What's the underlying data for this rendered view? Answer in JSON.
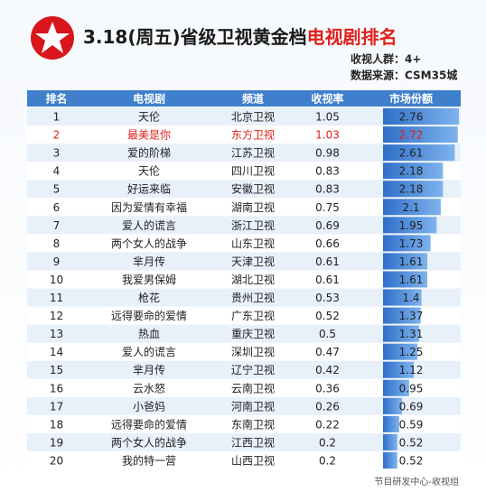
{
  "header": {
    "title_parts": [
      "3.18(周五)省级卫视黄金档",
      "电视剧排名"
    ],
    "title_colors": [
      "#1a1a1a",
      "#e0201c"
    ],
    "info": [
      "收视人群：4+",
      "数据来源：CSM35城"
    ]
  },
  "table": {
    "columns": [
      "排名",
      "电视剧",
      "频道",
      "收视率",
      "市场份额"
    ],
    "rows": [
      [
        1,
        "天伦",
        "北京卫视",
        1.05,
        2.76
      ],
      [
        2,
        "最美是你",
        "东方卫视",
        1.03,
        2.72
      ],
      [
        3,
        "爱的阶梯",
        "江苏卫视",
        0.98,
        2.61
      ],
      [
        4,
        "天伦",
        "四川卫视",
        0.83,
        2.18
      ],
      [
        5,
        "好运来临",
        "安徽卫视",
        0.83,
        2.18
      ],
      [
        6,
        "因为爱情有幸福",
        "湖南卫视",
        0.75,
        2.1
      ],
      [
        7,
        "爱人的谎言",
        "浙江卫视",
        0.69,
        1.95
      ],
      [
        8,
        "两个女人的战争",
        "山东卫视",
        0.66,
        1.73
      ],
      [
        9,
        "芈月传",
        "天津卫视",
        0.61,
        1.61
      ],
      [
        10,
        "我爱男保姆",
        "湖北卫视",
        0.61,
        1.61
      ],
      [
        11,
        "枪花",
        "贵州卫视",
        0.53,
        1.4
      ],
      [
        12,
        "远得要命的爱情",
        "广东卫视",
        0.52,
        1.37
      ],
      [
        13,
        "热血",
        "重庆卫视",
        0.5,
        1.31
      ],
      [
        14,
        "爱人的谎言",
        "深圳卫视",
        0.47,
        1.25
      ],
      [
        15,
        "芈月传",
        "辽宁卫视",
        0.42,
        1.12
      ],
      [
        16,
        "云水怒",
        "云南卫视",
        0.36,
        0.95
      ],
      [
        17,
        "小爸妈",
        "河南卫视",
        0.26,
        0.69
      ],
      [
        18,
        "远得要命的爱情",
        "东南卫视",
        0.22,
        0.59
      ],
      [
        19,
        "两个女人的战争",
        "江西卫视",
        0.2,
        0.52
      ],
      [
        20,
        "我的特一营",
        "山西卫视",
        0.2,
        0.52
      ]
    ],
    "highlight": {
      "row": 1,
      "color": "#e0201c"
    },
    "bar_color": "#3c7fd6"
  },
  "footer": "节目研发中心-收视组"
}
